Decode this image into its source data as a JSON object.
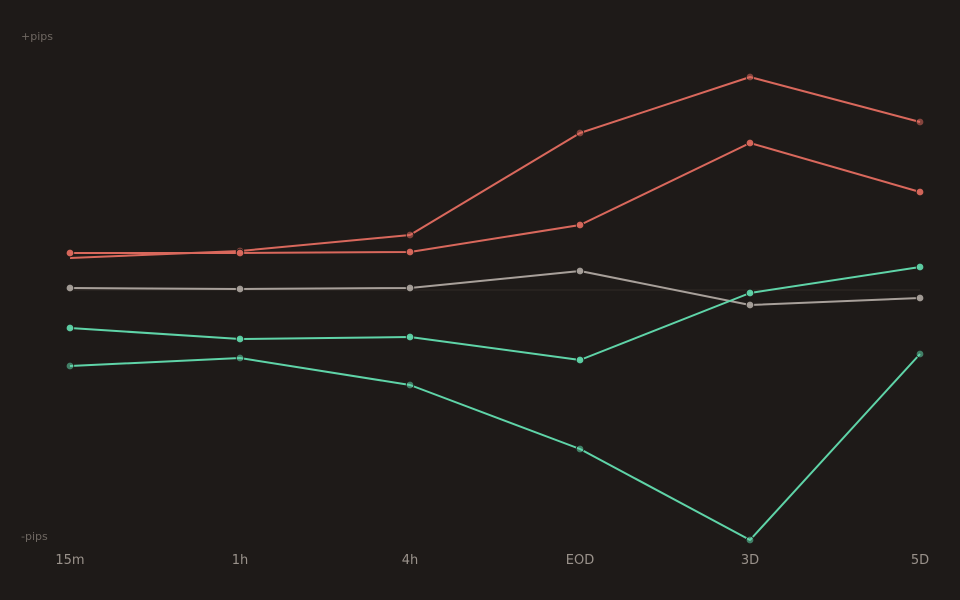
{
  "chart_data": {
    "type": "line",
    "title": "",
    "ylabel_top": "+pips",
    "ylabel_bottom": "-pips",
    "categories": [
      "15m",
      "1h",
      "4h",
      "EOD",
      "3D",
      "5D"
    ],
    "ylim": [
      -100,
      100
    ],
    "zero_line": true,
    "grid": false,
    "series": [
      {
        "color": "#d9685c",
        "values": [
          12.8,
          15.6,
          22.0,
          62.8,
          85.2,
          67.2
        ],
        "first_marker_y": 14.8
      },
      {
        "color": "#d9685c",
        "values": [
          14.8,
          14.8,
          15.2,
          26.0,
          58.8,
          39.2
        ]
      },
      {
        "color": "#a8a09a",
        "values": [
          0.8,
          0.4,
          0.8,
          7.6,
          -6.0,
          -3.2
        ]
      },
      {
        "color": "#5fd4a8",
        "values": [
          -15.2,
          -19.6,
          -18.8,
          -28.0,
          -1.2,
          9.2
        ]
      },
      {
        "color": "#5fd4a8",
        "values": [
          -30.4,
          -27.2,
          -38.0,
          -63.6,
          -100.0,
          -25.6
        ]
      }
    ]
  }
}
